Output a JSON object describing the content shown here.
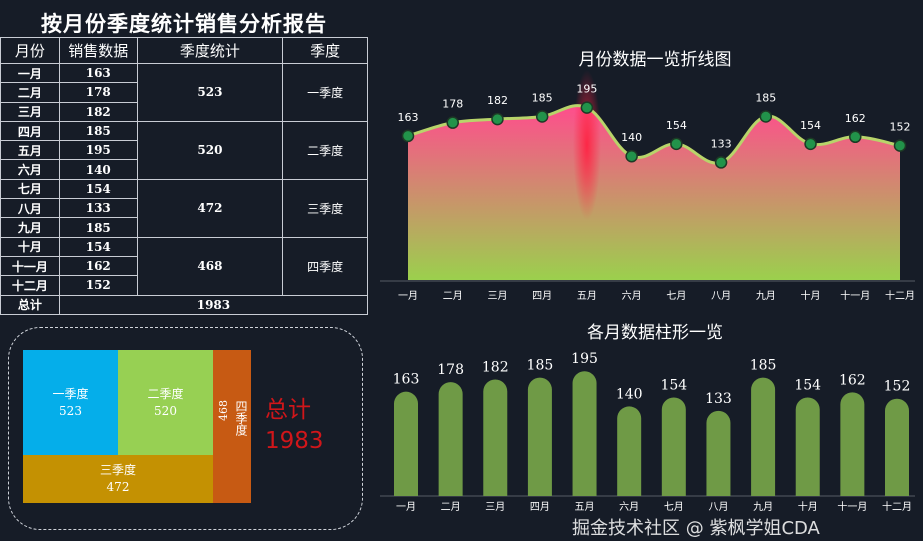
{
  "title": "按月份季度统计销售分析报告",
  "table": {
    "headers": [
      "月份",
      "销售数据",
      "季度统计",
      "季度"
    ],
    "months": [
      "一月",
      "二月",
      "三月",
      "四月",
      "五月",
      "六月",
      "七月",
      "八月",
      "九月",
      "十月",
      "十一月",
      "十二月"
    ],
    "sales": [
      163,
      178,
      182,
      185,
      195,
      140,
      154,
      133,
      185,
      154,
      162,
      152
    ],
    "quarter_totals": [
      523,
      520,
      472,
      468
    ],
    "quarters": [
      "一季度",
      "二季度",
      "三季度",
      "四季度"
    ],
    "total_label": "总计",
    "total": 1983
  },
  "treemap": {
    "items": [
      {
        "label": "一季度",
        "value": 523,
        "color": "#05aeea"
      },
      {
        "label": "二季度",
        "value": 520,
        "color": "#97d053"
      },
      {
        "label": "三季度",
        "value": 472,
        "color": "#c49102"
      },
      {
        "label": "四季度",
        "value": 468,
        "color": "#c75a13"
      }
    ],
    "total_label": "总计",
    "total": "1983"
  },
  "chart_data": [
    {
      "type": "area",
      "title": "月份数据一览折线图",
      "categories": [
        "一月",
        "二月",
        "三月",
        "四月",
        "五月",
        "六月",
        "七月",
        "八月",
        "九月",
        "十月",
        "十一月",
        "十二月"
      ],
      "values": [
        163,
        178,
        182,
        185,
        195,
        140,
        154,
        133,
        185,
        154,
        162,
        152
      ],
      "ylim": [
        0,
        200
      ],
      "grid": false,
      "colors": {
        "line": "#b8d46a",
        "marker": "#22934a",
        "fill_top": "#ff4d8d",
        "fill_bottom": "#9bd04d"
      }
    },
    {
      "type": "bar",
      "title": "各月数据柱形一览",
      "categories": [
        "一月",
        "二月",
        "三月",
        "四月",
        "五月",
        "六月",
        "七月",
        "八月",
        "九月",
        "十月",
        "十一月",
        "十二月"
      ],
      "values": [
        163,
        178,
        182,
        185,
        195,
        140,
        154,
        133,
        185,
        154,
        162,
        152
      ],
      "ylim": [
        0,
        200
      ],
      "grid": false,
      "colors": {
        "bar": "#6f9a46"
      }
    }
  ],
  "watermark": "掘金技术社区 @ 紫枫学姐CDA"
}
